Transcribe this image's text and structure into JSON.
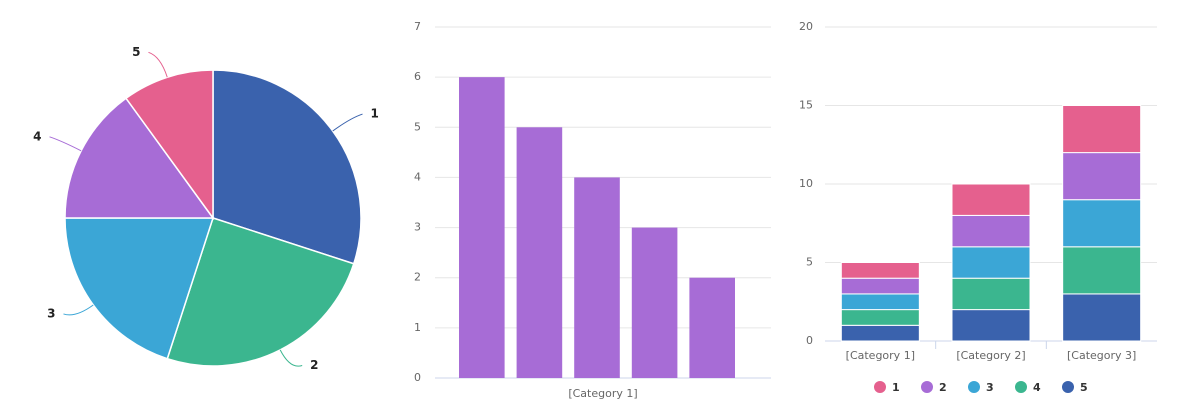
{
  "chart_data": [
    {
      "type": "pie",
      "labels": [
        "1",
        "2",
        "3",
        "4",
        "5"
      ],
      "values": [
        6,
        5,
        4,
        3,
        2
      ],
      "colors": [
        "#3a62ad",
        "#3bb68f",
        "#3ba6d6",
        "#a76cd6",
        "#e5608e"
      ]
    },
    {
      "type": "bar",
      "categories": [
        "[Category 1]"
      ],
      "series": [
        {
          "color": "#a76cd6",
          "values": [
            6
          ]
        },
        {
          "color": "#a76cd6",
          "values": [
            5
          ]
        },
        {
          "color": "#a76cd6",
          "values": [
            4
          ]
        },
        {
          "color": "#a76cd6",
          "values": [
            3
          ]
        },
        {
          "color": "#a76cd6",
          "values": [
            2
          ]
        }
      ],
      "ylim": [
        0,
        7
      ],
      "yticks": [
        0,
        1,
        2,
        3,
        4,
        5,
        6,
        7
      ],
      "grid": true
    },
    {
      "type": "stacked_bar",
      "categories": [
        "[Category 1]",
        "[Category 2]",
        "[Category 3]"
      ],
      "series": [
        {
          "name": "1",
          "color": "#e5608e",
          "values": [
            1,
            2,
            3
          ]
        },
        {
          "name": "2",
          "color": "#a76cd6",
          "values": [
            1,
            2,
            3
          ]
        },
        {
          "name": "3",
          "color": "#3ba6d6",
          "values": [
            1,
            2,
            3
          ]
        },
        {
          "name": "4",
          "color": "#3bb68f",
          "values": [
            1,
            2,
            3
          ]
        },
        {
          "name": "5",
          "color": "#3a62ad",
          "values": [
            1,
            2,
            3
          ]
        }
      ],
      "ylim": [
        0,
        20
      ],
      "yticks": [
        0,
        5,
        10,
        15,
        20
      ],
      "grid": true,
      "legend": "bottom"
    }
  ]
}
